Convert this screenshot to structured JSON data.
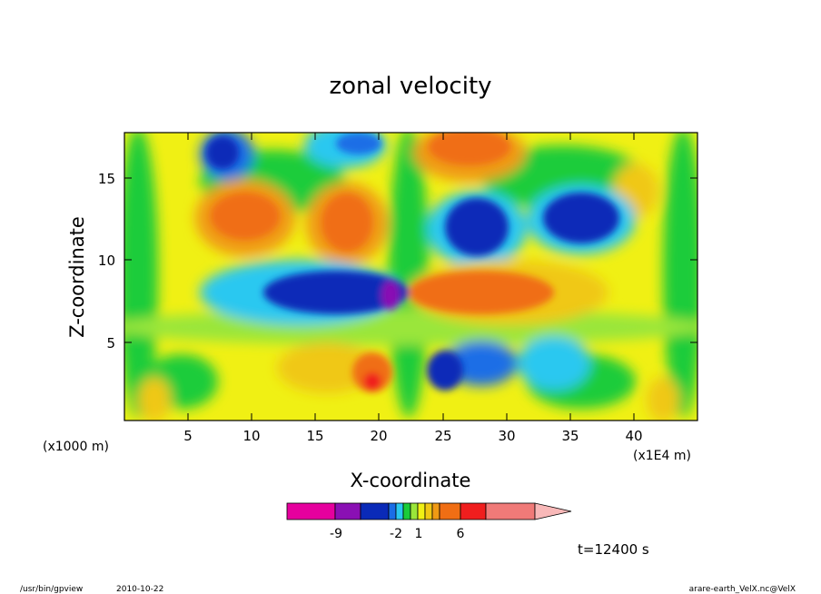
{
  "chart_data": {
    "type": "heatmap",
    "title": "zonal velocity",
    "xlabel": "X-coordinate",
    "ylabel": "Z-coordinate",
    "x_unit": "(x1E4 m)",
    "y_unit": "(x1000 m)",
    "xlim": [
      0,
      45
    ],
    "ylim": [
      0,
      17.5
    ],
    "x_ticks": [
      "5",
      "10",
      "15",
      "20",
      "25",
      "30",
      "35",
      "40"
    ],
    "y_ticks": [
      "5",
      "10",
      "15"
    ],
    "colorbar": {
      "tick_labels": [
        "-9",
        "-2",
        "1",
        "6"
      ],
      "colors": [
        "#e6009e",
        "#8a10b4",
        "#0a2ab8",
        "#1a6ee6",
        "#2ac8f0",
        "#1acc3a",
        "#9ae63a",
        "#f0f014",
        "#f0c814",
        "#f09a14",
        "#f06e14",
        "#f01e1e",
        "#f07a78"
      ],
      "extend_color": "#f8b8b8"
    },
    "features": [
      {
        "x": 20,
        "z": 8,
        "value": -9,
        "color": "#0a2ab8"
      },
      {
        "x": 26.5,
        "z": 8,
        "value": 6,
        "color": "#f06e14"
      },
      {
        "x": 9,
        "z": 12.5,
        "value": 6,
        "color": "#f06e14"
      },
      {
        "x": 17,
        "z": 12,
        "value": 6,
        "color": "#f06e14"
      },
      {
        "x": 28,
        "z": 11.5,
        "value": -9,
        "color": "#0a2ab8"
      },
      {
        "x": 36,
        "z": 12.5,
        "value": -9,
        "color": "#0a2ab8"
      },
      {
        "x": 27.5,
        "z": 16.5,
        "value": 6,
        "color": "#f06e14"
      },
      {
        "x": 17,
        "z": 16.5,
        "value": -2,
        "color": "#1a6ee6"
      },
      {
        "x": 24.5,
        "z": 2.5,
        "value": -9,
        "color": "#0a2ab8"
      },
      {
        "x": 20.5,
        "z": 2.5,
        "value": 6,
        "color": "#f06e14"
      }
    ]
  },
  "annotations": {
    "time": "t=12400 s",
    "program": "/usr/bin/gpview",
    "date": "2010-10-22",
    "source": "arare-earth_VelX.nc@VelX"
  }
}
